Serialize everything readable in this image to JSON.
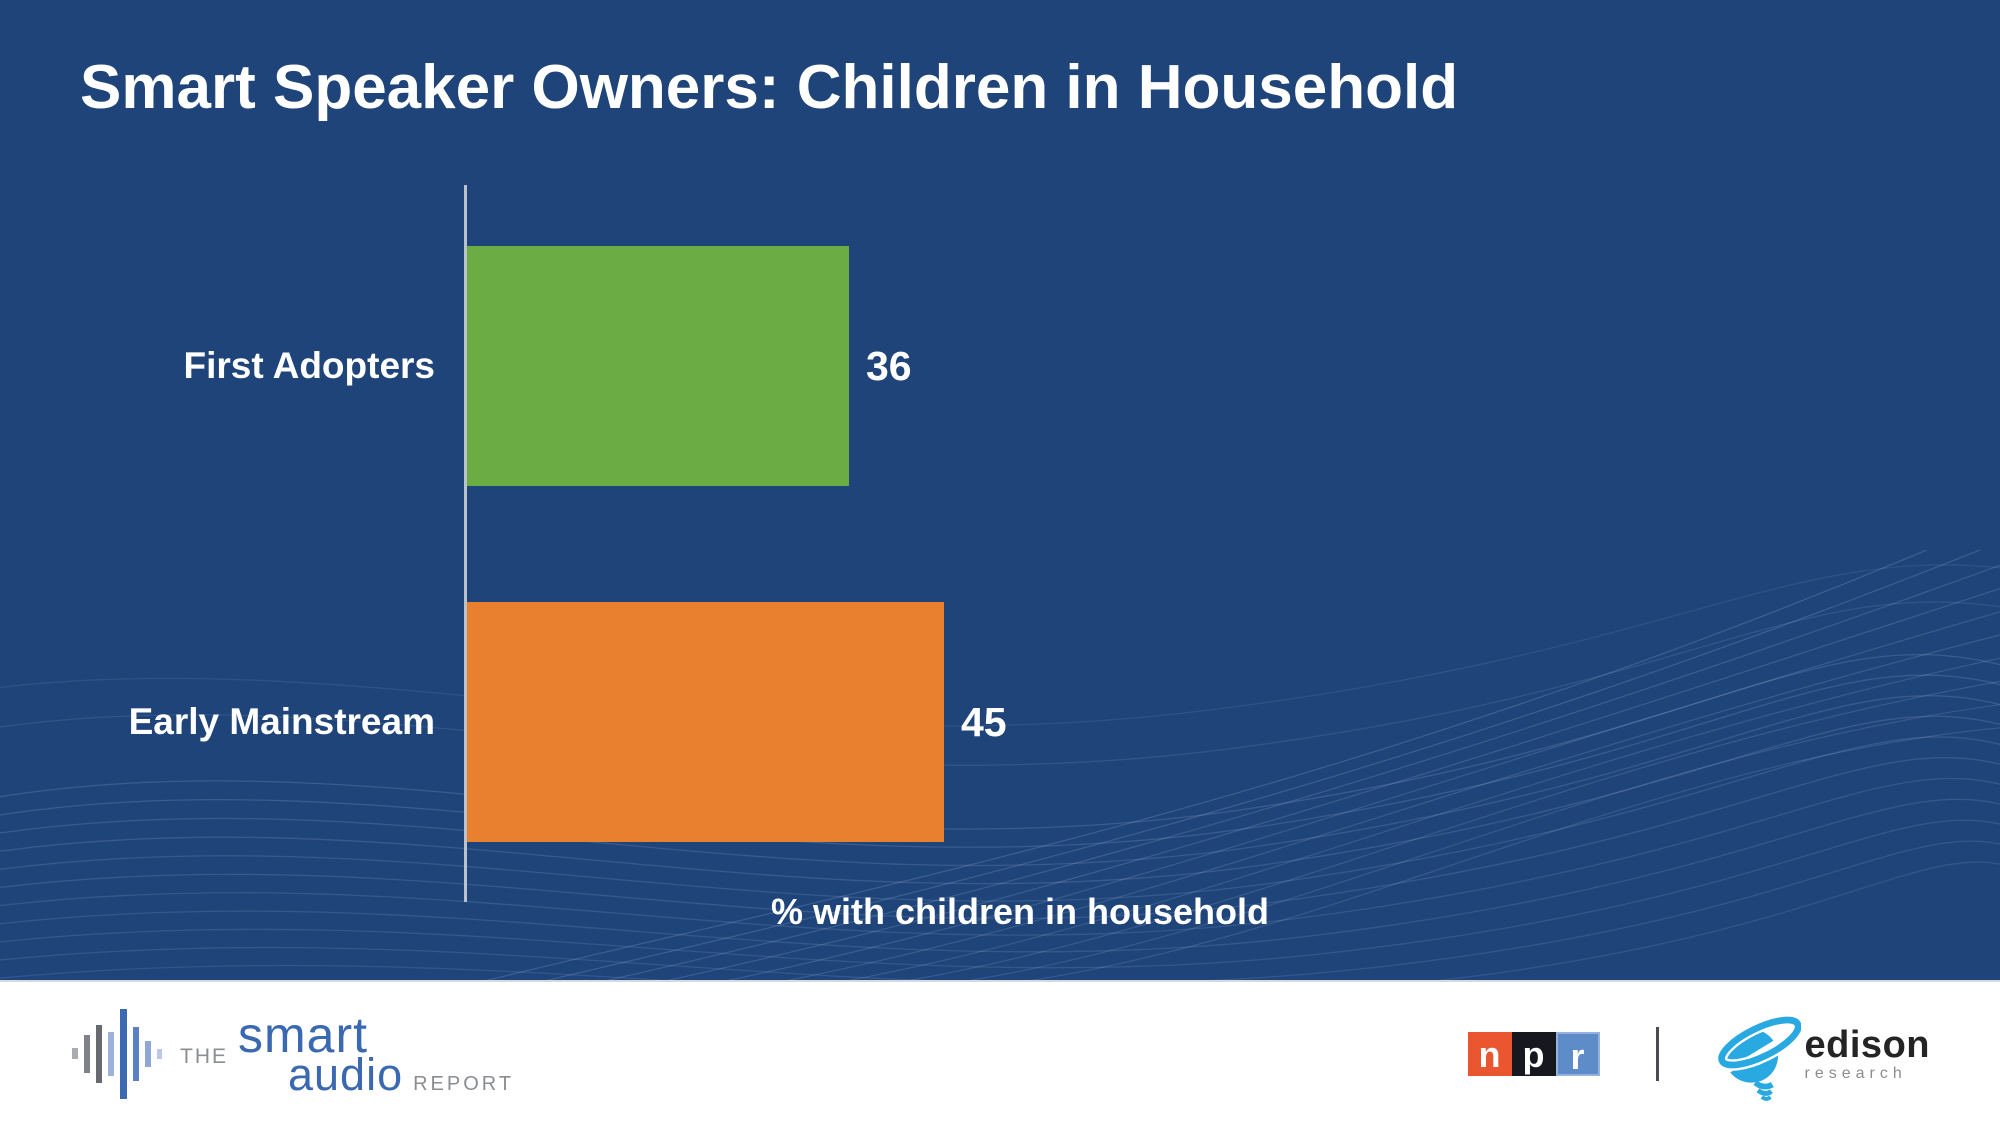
{
  "title": "Smart Speaker Owners: Children in Household",
  "chart_data": {
    "type": "bar",
    "orientation": "horizontal",
    "title": "Smart Speaker Owners: Children in Household",
    "categories": [
      "First Adopters",
      "Early Mainstream"
    ],
    "values": [
      36,
      45
    ],
    "series": [
      {
        "name": "% with children in household",
        "values": [
          36,
          45
        ]
      }
    ],
    "bar_colors": [
      "#6CAC45",
      "#E8802F"
    ],
    "xlabel": "% with children in household",
    "ylabel": "",
    "grid": false,
    "legend": "none",
    "value_labels_shown": true,
    "axis_line_color": "#BCC2CC",
    "label_text_color": "#FFFFFF"
  },
  "colors": {
    "background": "#1F4479",
    "footer_background": "#FFFFFF",
    "title_text": "#FFFFFF",
    "green_bar": "#6CAC45",
    "orange_bar": "#E8802F"
  },
  "footer": {
    "smart_audio": {
      "the": "THE",
      "smart": "smart",
      "audio": "audio",
      "report": "REPORT",
      "brand_blue": "#3A68B1",
      "brand_gray": "#8A8D91"
    },
    "npr": {
      "letters": [
        "n",
        "p",
        "r"
      ],
      "square_colors": [
        "#E9562F",
        "#17171F",
        "#5E8CC9"
      ]
    },
    "edison": {
      "name": "edison",
      "sub": "research",
      "icon_blue": "#29A9E1"
    }
  }
}
